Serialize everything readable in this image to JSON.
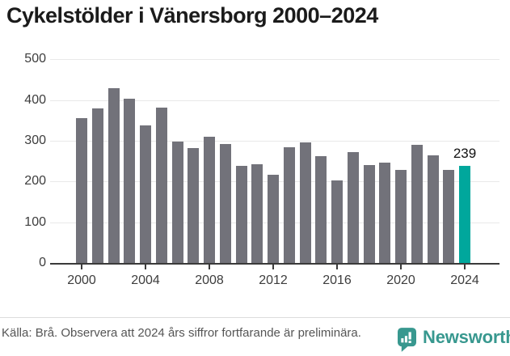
{
  "header": {
    "title": "Cykelstölder i Vänersborg 2000–2024"
  },
  "chart_data": {
    "type": "bar",
    "title": "Cykelstölder i Vänersborg 2000–2024",
    "x": [
      2000,
      2001,
      2002,
      2003,
      2004,
      2005,
      2006,
      2007,
      2008,
      2009,
      2010,
      2011,
      2012,
      2013,
      2014,
      2015,
      2016,
      2017,
      2018,
      2019,
      2020,
      2021,
      2022,
      2023,
      2024
    ],
    "values": [
      356,
      380,
      428,
      404,
      337,
      382,
      298,
      282,
      309,
      292,
      238,
      242,
      216,
      283,
      296,
      262,
      202,
      272,
      240,
      246,
      228,
      290,
      265,
      228,
      239
    ],
    "x_ticks": [
      2000,
      2004,
      2008,
      2012,
      2016,
      2020,
      2024
    ],
    "y_ticks": [
      0,
      100,
      200,
      300,
      400,
      500
    ],
    "ylim": [
      0,
      500
    ],
    "grid": "horizontal",
    "legend": "none",
    "highlight_year": 2024,
    "annotation": {
      "year": 2024,
      "label": "239"
    },
    "colors": {
      "bar": "#72727a",
      "highlight": "#00a79c",
      "gridline": "#e9e9e9",
      "axis": "#3a3a3a",
      "tick_label": "#3d3d3d",
      "value_label": "#111111"
    }
  },
  "footer": {
    "source": "Källa: Brå. Observera att 2024 års siffror fortfarande är preliminära.",
    "brand": "Newsworthy",
    "brand_color": "#38988f"
  }
}
